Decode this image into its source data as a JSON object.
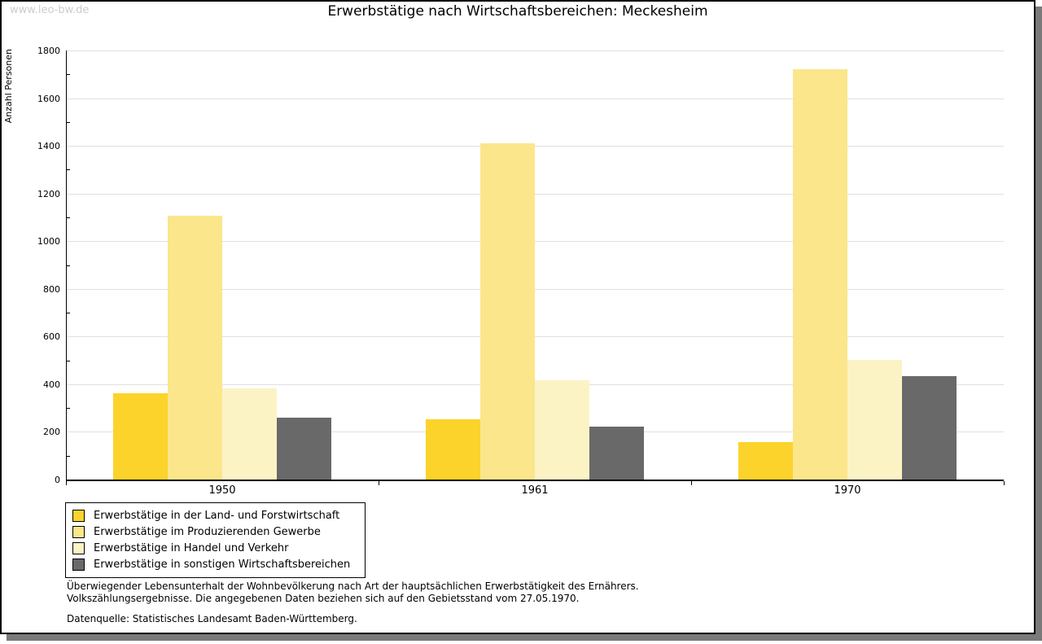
{
  "watermark": "www.leo-bw.de",
  "header": {
    "title": "Erwerbstätige nach Wirtschaftsbereichen: Meckesheim"
  },
  "chart_data": {
    "type": "bar",
    "title": "Erwerbstätige nach Wirtschaftsbereichen: Meckesheim",
    "xlabel": "",
    "ylabel": "Anzahl Personen",
    "ylim": [
      0,
      1800
    ],
    "ytick_step": 200,
    "minor_tick_step": 100,
    "yticks": [
      0,
      200,
      400,
      600,
      800,
      1000,
      1200,
      1400,
      1600,
      1800
    ],
    "grid": "horizontal",
    "legend_position": "bottom-left",
    "categories": [
      "1950",
      "1961",
      "1970"
    ],
    "series": [
      {
        "name": "Erwerbstätige in der Land- und Forstwirtschaft",
        "color": "#FCD32B",
        "values": [
          363,
          253,
          157
        ]
      },
      {
        "name": "Erwerbstätige im Produzierenden Gewerbe",
        "color": "#FBE68B",
        "values": [
          1107,
          1410,
          1722
        ]
      },
      {
        "name": "Erwerbstätige in Handel und Verkehr",
        "color": "#FCF3C5",
        "values": [
          384,
          417,
          503
        ]
      },
      {
        "name": "Erwerbstätige in sonstigen Wirtschaftsbereichen",
        "color": "#696969",
        "values": [
          260,
          222,
          433
        ]
      }
    ]
  },
  "footnotes": {
    "line1": "Überwiegender Lebensunterhalt der Wohnbevölkerung nach Art der hauptsächlichen Erwerbstätigkeit des Ernährers.",
    "line2": "Volkszählungsergebnisse. Die angegebenen Daten beziehen sich auf den Gebietsstand vom 27.05.1970.",
    "source": "Datenquelle: Statistisches Landesamt Baden-Württemberg."
  },
  "colors": {
    "grid": "#e0e0e0",
    "axis": "#000000",
    "watermark": "#cccccc",
    "shadow": "#7a7a7a"
  }
}
